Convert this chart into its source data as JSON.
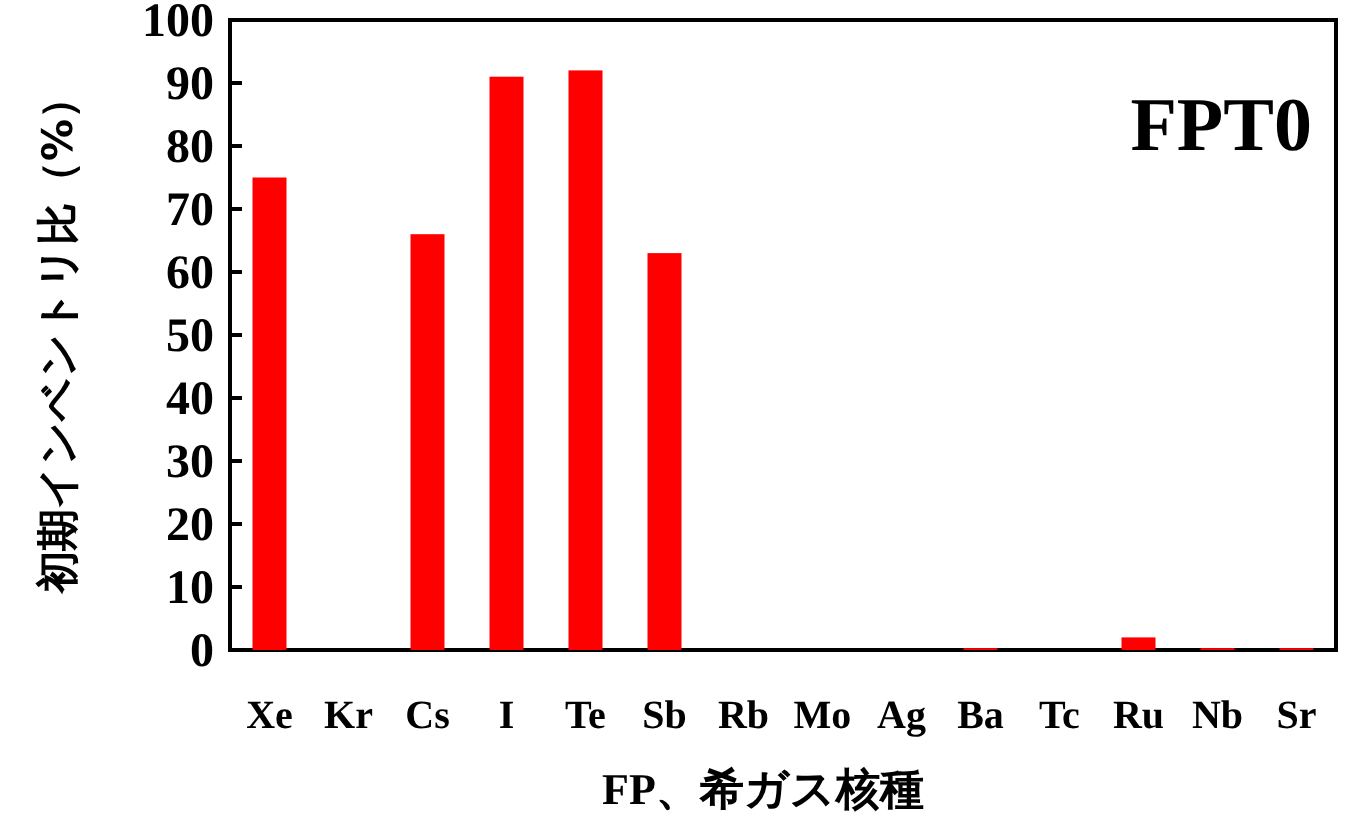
{
  "chart_data": {
    "type": "bar",
    "title": "FPT0",
    "xlabel": "FP、希ガス核種",
    "ylabel": "初期インベントリ比（%）",
    "categories": [
      "Xe",
      "Kr",
      "Cs",
      "I",
      "Te",
      "Sb",
      "Rb",
      "Mo",
      "Ag",
      "Ba",
      "Tc",
      "Ru",
      "Nb",
      "Sr"
    ],
    "values": [
      75,
      0,
      66,
      91,
      92,
      63,
      0,
      0,
      0,
      0.3,
      0,
      2,
      0.3,
      0.3
    ],
    "color": "#ff0000",
    "ylim": [
      0,
      100
    ],
    "yticks": [
      0,
      10,
      20,
      30,
      40,
      50,
      60,
      70,
      80,
      90,
      100
    ]
  }
}
